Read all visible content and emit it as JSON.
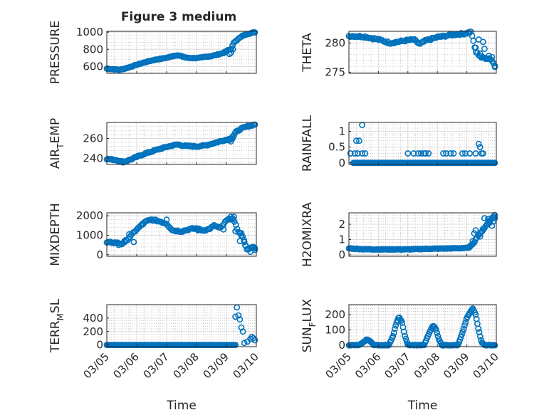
{
  "figure": {
    "title": "Figure 3 medium",
    "marker_color": "#0072BD",
    "grid": true,
    "minor_grid": true
  },
  "chart_data": [
    {
      "type": "scatter",
      "title": "Figure 3 medium",
      "ylabel": "PRESSURE",
      "xlabel": "",
      "x_ticks": [
        "03/05",
        "03/06",
        "03/07",
        "03/08",
        "03/09",
        "03/10"
      ],
      "xlim": [
        "03/05",
        "03/10"
      ],
      "ylim": [
        520,
        1010
      ],
      "yticks": [
        {
          "v": 600,
          "t": "600"
        },
        {
          "v": 800,
          "t": "800"
        },
        {
          "v": 1000,
          "t": "1000"
        }
      ],
      "tick_labels": false,
      "anchors": [
        [
          0,
          575
        ],
        [
          0.2,
          568
        ],
        [
          0.45,
          562
        ],
        [
          0.7,
          585
        ],
        [
          1.0,
          620
        ],
        [
          1.3,
          652
        ],
        [
          1.6,
          678
        ],
        [
          1.9,
          695
        ],
        [
          2.05,
          705
        ],
        [
          2.2,
          722
        ],
        [
          2.35,
          732
        ],
        [
          2.5,
          718
        ],
        [
          2.7,
          700
        ],
        [
          2.9,
          698
        ],
        [
          3.1,
          700
        ],
        [
          3.3,
          712
        ],
        [
          3.5,
          722
        ],
        [
          3.7,
          738
        ],
        [
          3.9,
          758
        ],
        [
          4.05,
          790
        ],
        [
          4.15,
          800
        ],
        [
          4.25,
          880
        ],
        [
          4.35,
          910
        ],
        [
          4.55,
          960
        ],
        [
          4.7,
          980
        ],
        [
          4.95,
          1000
        ]
      ],
      "n": 120,
      "noise": 4,
      "extra": [
        [
          4.1,
          745
        ],
        [
          4.15,
          760
        ],
        [
          4.22,
          800
        ]
      ]
    },
    {
      "type": "scatter",
      "ylabel": "THETA",
      "xlabel": "",
      "x_ticks": [
        "03/05",
        "03/06",
        "03/07",
        "03/08",
        "03/09",
        "03/10"
      ],
      "xlim": [
        "03/05",
        "03/10"
      ],
      "ylim": [
        274.8,
        282
      ],
      "yticks": [
        {
          "v": 275,
          "t": "275"
        },
        {
          "v": 280,
          "t": "280"
        }
      ],
      "tick_labels": false,
      "anchors": [
        [
          0,
          281.2
        ],
        [
          0.5,
          281.1
        ],
        [
          1.0,
          280.6
        ],
        [
          1.4,
          280.0
        ],
        [
          1.9,
          280.4
        ],
        [
          2.2,
          280.6
        ],
        [
          2.4,
          279.8
        ],
        [
          2.6,
          280.4
        ],
        [
          3.0,
          281.0
        ],
        [
          3.5,
          281.4
        ],
        [
          3.9,
          281.6
        ],
        [
          4.15,
          281.9
        ],
        [
          4.3,
          278.5
        ],
        [
          4.5,
          277.5
        ],
        [
          4.8,
          277.3
        ],
        [
          4.95,
          276.2
        ]
      ],
      "n": 110,
      "noise": 0.15,
      "extra": [
        [
          4.05,
          281.8
        ],
        [
          4.3,
          279.2
        ],
        [
          4.4,
          280.6
        ],
        [
          4.55,
          280.2
        ],
        [
          4.6,
          279.0
        ],
        [
          4.75,
          277.8
        ],
        [
          4.85,
          277.6
        ],
        [
          4.95,
          275.9
        ],
        [
          4.45,
          278.2
        ]
      ]
    },
    {
      "type": "scatter",
      "ylabel": "AIR_TEMP",
      "xlabel": "",
      "x_ticks": [
        "03/05",
        "03/06",
        "03/07",
        "03/08",
        "03/09",
        "03/10"
      ],
      "xlim": [
        "03/05",
        "03/10"
      ],
      "ylim": [
        234,
        276
      ],
      "yticks": [
        {
          "v": 240,
          "t": "240"
        },
        {
          "v": 260,
          "t": "260"
        }
      ],
      "tick_labels": false,
      "anchors": [
        [
          0,
          239.5
        ],
        [
          0.3,
          238.5
        ],
        [
          0.55,
          236.5
        ],
        [
          0.8,
          239.0
        ],
        [
          1.2,
          244.0
        ],
        [
          1.6,
          248.0
        ],
        [
          2.0,
          251.5
        ],
        [
          2.35,
          254.0
        ],
        [
          2.6,
          252.5
        ],
        [
          3.0,
          252.0
        ],
        [
          3.3,
          253.0
        ],
        [
          3.6,
          255.5
        ],
        [
          3.9,
          258.0
        ],
        [
          4.2,
          260.0
        ],
        [
          4.3,
          266.0
        ],
        [
          4.5,
          270.0
        ],
        [
          4.7,
          272.0
        ],
        [
          4.95,
          274.0
        ]
      ],
      "n": 120,
      "noise": 0.6,
      "extra": [
        [
          4.1,
          258.5
        ],
        [
          4.15,
          257.0
        ],
        [
          4.2,
          262.0
        ]
      ]
    },
    {
      "type": "scatter",
      "ylabel": "RAINFALL",
      "xlabel": "",
      "x_ticks": [
        "03/05",
        "03/06",
        "03/07",
        "03/08",
        "03/09",
        "03/10"
      ],
      "xlim": [
        "03/05",
        "03/10"
      ],
      "ylim": [
        -0.05,
        1.28
      ],
      "yticks": [
        {
          "v": 0,
          "t": "0"
        },
        {
          "v": 0.5,
          "t": "0.5"
        },
        {
          "v": 1,
          "t": "1"
        }
      ],
      "tick_labels": false,
      "anchors": [
        [
          0.15,
          0
        ],
        [
          4.95,
          0
        ]
      ],
      "n": 140,
      "noise": 0,
      "extra": [
        [
          0.05,
          0.3
        ],
        [
          0.2,
          0.3
        ],
        [
          0.3,
          0.3
        ],
        [
          0.25,
          0.7
        ],
        [
          0.35,
          0.7
        ],
        [
          0.45,
          1.2
        ],
        [
          0.45,
          0.3
        ],
        [
          0.55,
          0.3
        ],
        [
          2.0,
          0.3
        ],
        [
          2.2,
          0.3
        ],
        [
          2.35,
          0.3
        ],
        [
          2.45,
          0.3
        ],
        [
          2.55,
          0.3
        ],
        [
          2.6,
          0.3
        ],
        [
          2.7,
          0.3
        ],
        [
          3.2,
          0.3
        ],
        [
          3.3,
          0.3
        ],
        [
          3.45,
          0.3
        ],
        [
          3.55,
          0.3
        ],
        [
          3.85,
          0.3
        ],
        [
          3.95,
          0.3
        ],
        [
          4.1,
          0.3
        ],
        [
          4.3,
          0.3
        ],
        [
          4.4,
          0.6
        ],
        [
          4.45,
          0.5
        ],
        [
          4.5,
          0.3
        ],
        [
          4.55,
          0.3
        ]
      ]
    },
    {
      "type": "scatter",
      "ylabel": "MIXDEPTH",
      "xlabel": "",
      "x_ticks": [
        "03/05",
        "03/06",
        "03/07",
        "03/08",
        "03/09",
        "03/10"
      ],
      "xlim": [
        "03/05",
        "03/10"
      ],
      "ylim": [
        -80,
        2150
      ],
      "yticks": [
        {
          "v": 0,
          "t": "0"
        },
        {
          "v": 1000,
          "t": "1000"
        },
        {
          "v": 2000,
          "t": "2000"
        }
      ],
      "tick_labels": false,
      "anchors": [
        [
          0,
          620
        ],
        [
          0.3,
          620
        ],
        [
          0.5,
          560
        ],
        [
          0.7,
          800
        ],
        [
          1.0,
          1300
        ],
        [
          1.3,
          1700
        ],
        [
          1.5,
          1800
        ],
        [
          1.75,
          1720
        ],
        [
          2.0,
          1600
        ],
        [
          2.2,
          1250
        ],
        [
          2.5,
          1200
        ],
        [
          2.8,
          1320
        ],
        [
          3.0,
          1350
        ],
        [
          3.2,
          1250
        ],
        [
          3.4,
          1300
        ],
        [
          3.6,
          1500
        ],
        [
          3.8,
          1350
        ],
        [
          4.0,
          1750
        ],
        [
          4.2,
          1900
        ],
        [
          4.4,
          1200
        ],
        [
          4.55,
          900
        ],
        [
          4.7,
          200
        ],
        [
          4.8,
          400
        ],
        [
          4.95,
          300
        ]
      ],
      "n": 110,
      "noise": 40,
      "extra": [
        [
          0.25,
          620
        ],
        [
          0.4,
          500
        ],
        [
          0.6,
          650
        ],
        [
          0.75,
          1050
        ],
        [
          0.9,
          650
        ],
        [
          1.2,
          1600
        ],
        [
          2.0,
          1800
        ],
        [
          3.05,
          1250
        ],
        [
          3.9,
          1300
        ],
        [
          4.25,
          1950
        ],
        [
          4.15,
          1950
        ],
        [
          4.3,
          1200
        ],
        [
          4.45,
          700
        ],
        [
          4.5,
          1100
        ],
        [
          4.6,
          650
        ],
        [
          4.65,
          450
        ],
        [
          4.8,
          150
        ],
        [
          4.85,
          350
        ],
        [
          4.9,
          400
        ],
        [
          4.95,
          250
        ]
      ]
    },
    {
      "type": "scatter",
      "ylabel": "H2OMIXRA",
      "xlabel": "",
      "x_ticks": [
        "03/05",
        "03/06",
        "03/07",
        "03/08",
        "03/09",
        "03/10"
      ],
      "xlim": [
        "03/05",
        "03/10"
      ],
      "ylim": [
        -0.1,
        2.75
      ],
      "yticks": [
        {
          "v": 0,
          "t": "0"
        },
        {
          "v": 1,
          "t": "1"
        },
        {
          "v": 2,
          "t": "2"
        }
      ],
      "tick_labels": false,
      "anchors": [
        [
          0,
          0.42
        ],
        [
          0.5,
          0.36
        ],
        [
          1.0,
          0.35
        ],
        [
          2.0,
          0.35
        ],
        [
          2.5,
          0.38
        ],
        [
          3.0,
          0.4
        ],
        [
          3.5,
          0.42
        ],
        [
          4.05,
          0.45
        ],
        [
          4.25,
          0.8
        ],
        [
          4.35,
          1.2
        ],
        [
          4.5,
          1.5
        ],
        [
          4.65,
          1.9
        ],
        [
          4.8,
          2.3
        ],
        [
          4.95,
          2.6
        ]
      ],
      "n": 130,
      "noise": 0.02,
      "extra": [
        [
          4.1,
          0.5
        ],
        [
          4.2,
          0.9
        ],
        [
          4.25,
          1.4
        ],
        [
          4.3,
          1.6
        ],
        [
          4.45,
          1.2
        ],
        [
          4.55,
          1.7
        ],
        [
          4.6,
          2.4
        ],
        [
          4.72,
          2.35
        ],
        [
          4.78,
          2.1
        ],
        [
          4.85,
          1.9
        ],
        [
          4.9,
          2.2
        ],
        [
          4.95,
          2.4
        ]
      ]
    },
    {
      "type": "scatter",
      "ylabel": "TERR_MSL",
      "xlabel": "Time",
      "x_ticks": [
        "03/05",
        "03/06",
        "03/07",
        "03/08",
        "03/09",
        "03/10"
      ],
      "xlim": [
        "03/05",
        "03/10"
      ],
      "ylim": [
        -25,
        600
      ],
      "yticks": [
        {
          "v": 0,
          "t": "0"
        },
        {
          "v": 200,
          "t": "200"
        },
        {
          "v": 400,
          "t": "400"
        }
      ],
      "tick_labels": true,
      "anchors": [
        [
          0,
          0
        ],
        [
          4.2,
          0
        ],
        [
          4.3,
          0
        ]
      ],
      "n": 140,
      "noise": 0,
      "extra": [
        [
          4.3,
          420
        ],
        [
          4.35,
          560
        ],
        [
          4.4,
          440
        ],
        [
          4.45,
          380
        ],
        [
          4.5,
          260
        ],
        [
          4.55,
          200
        ],
        [
          4.6,
          30
        ],
        [
          4.7,
          50
        ],
        [
          4.8,
          90
        ],
        [
          4.85,
          120
        ],
        [
          4.9,
          100
        ],
        [
          4.95,
          70
        ]
      ]
    },
    {
      "type": "scatter",
      "ylabel": "SUN_FLUX",
      "xlabel": "Time",
      "x_ticks": [
        "03/05",
        "03/06",
        "03/07",
        "03/08",
        "03/09",
        "03/10"
      ],
      "xlim": [
        "03/05",
        "03/10"
      ],
      "ylim": [
        -10,
        265
      ],
      "yticks": [
        {
          "v": 0,
          "t": "0"
        },
        {
          "v": 100,
          "t": "100"
        },
        {
          "v": 200,
          "t": "200"
        }
      ],
      "tick_labels": true,
      "anchors": [
        [
          0,
          0
        ],
        [
          0.35,
          0
        ],
        [
          0.5,
          20
        ],
        [
          0.6,
          38
        ],
        [
          0.75,
          22
        ],
        [
          0.85,
          0
        ],
        [
          1.35,
          0
        ],
        [
          1.5,
          60
        ],
        [
          1.6,
          140
        ],
        [
          1.7,
          185
        ],
        [
          1.8,
          150
        ],
        [
          1.9,
          60
        ],
        [
          2.0,
          0
        ],
        [
          2.55,
          0
        ],
        [
          2.7,
          70
        ],
        [
          2.85,
          130
        ],
        [
          2.95,
          105
        ],
        [
          3.05,
          40
        ],
        [
          3.15,
          0
        ],
        [
          3.7,
          0
        ],
        [
          3.85,
          80
        ],
        [
          4.0,
          180
        ],
        [
          4.2,
          240
        ],
        [
          4.3,
          200
        ],
        [
          4.4,
          100
        ],
        [
          4.5,
          20
        ],
        [
          4.6,
          0
        ],
        [
          4.95,
          0
        ]
      ],
      "n": 160,
      "noise": 2,
      "extra": []
    }
  ]
}
